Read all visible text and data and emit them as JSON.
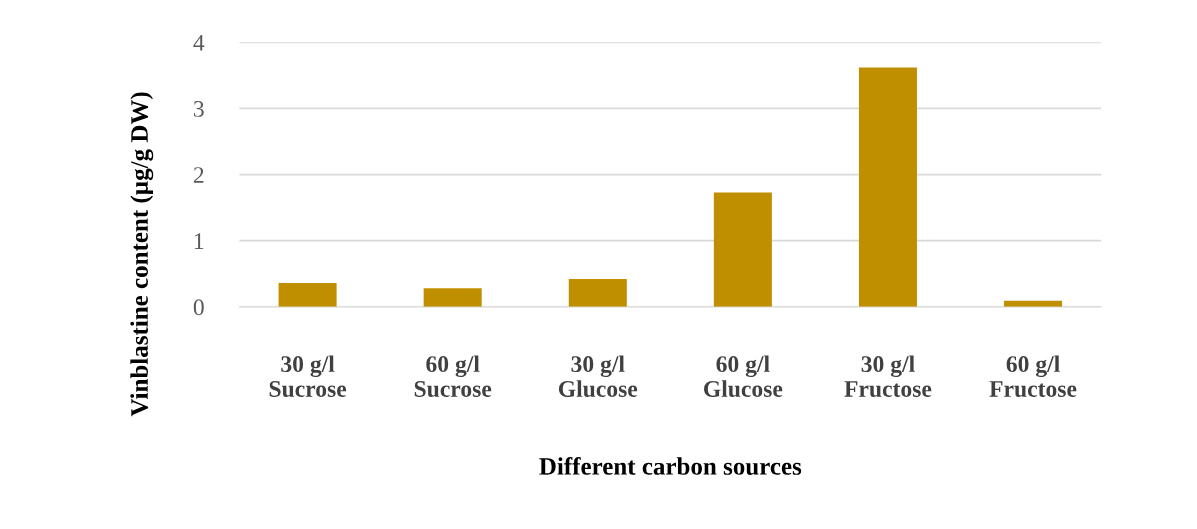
{
  "chart_data": {
    "type": "bar",
    "xlabel": "Different carbon sources",
    "ylabel": "Vinblastine content (µg/g DW)",
    "categories": [
      "30 g/l\nSucrose",
      "60 g/l\nSucrose",
      "30 g/l\nGlucose",
      "60 g/l\nGlucose",
      "30 g/l\nFructose",
      "60 g/l\nFructose"
    ],
    "values": [
      0.36,
      0.28,
      0.42,
      1.73,
      3.62,
      0.09
    ],
    "color": "#bf8f00",
    "ylim": [
      0,
      4
    ],
    "yticks": [
      0,
      1,
      2,
      3,
      4
    ],
    "grid": "y"
  }
}
